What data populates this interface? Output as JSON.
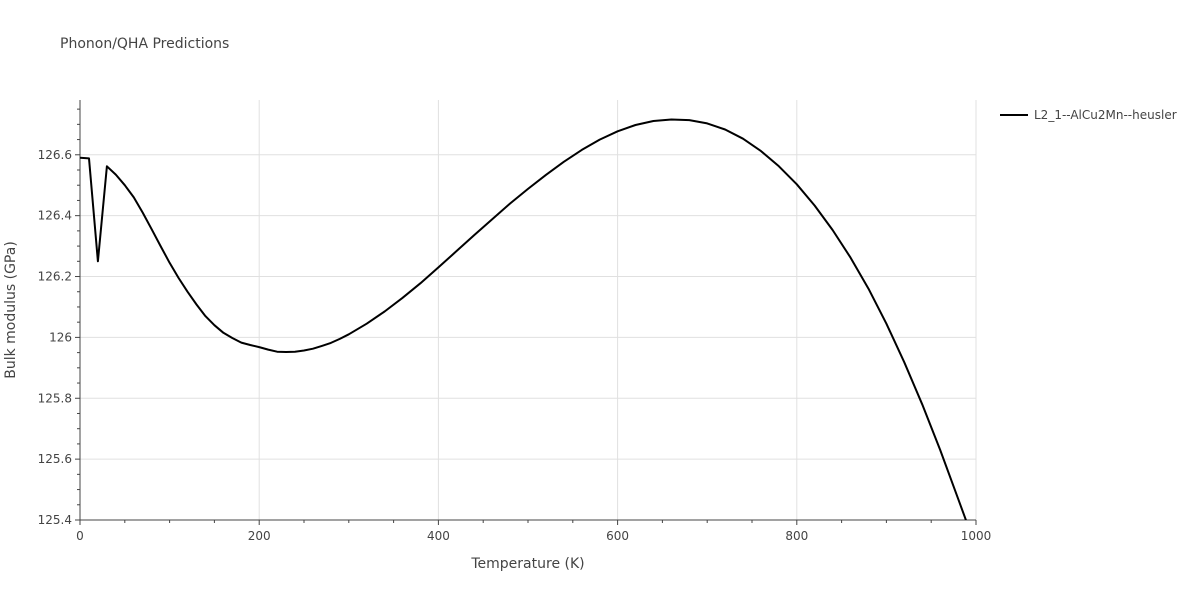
{
  "chart_data": {
    "type": "line",
    "title": "Phonon/QHA Predictions",
    "xlabel": "Temperature (K)",
    "ylabel": "Bulk modulus (GPa)",
    "xlim": [
      0,
      1000
    ],
    "ylim": [
      125.4,
      126.78
    ],
    "x_ticks": [
      0,
      200,
      400,
      600,
      800,
      1000
    ],
    "x_tick_labels": [
      "0",
      "200",
      "400",
      "600",
      "800",
      "1000"
    ],
    "y_ticks": [
      125.4,
      125.6,
      125.8,
      126.0,
      126.2,
      126.4,
      126.6
    ],
    "y_tick_labels": [
      "125.4",
      "125.6",
      "125.8",
      "126",
      "126.2",
      "126.4",
      "126.6"
    ],
    "grid": true,
    "legend_position": "top-right",
    "series": [
      {
        "name": "L2_1--AlCu2Mn--heusler",
        "color": "#000000",
        "x": [
          0,
          10,
          20,
          30,
          40,
          50,
          60,
          70,
          80,
          90,
          100,
          110,
          120,
          130,
          140,
          150,
          160,
          170,
          180,
          190,
          200,
          210,
          220,
          230,
          240,
          250,
          260,
          270,
          280,
          290,
          300,
          320,
          340,
          360,
          380,
          400,
          420,
          440,
          460,
          480,
          500,
          520,
          540,
          560,
          580,
          600,
          620,
          640,
          660,
          680,
          700,
          720,
          740,
          760,
          780,
          800,
          820,
          840,
          860,
          880,
          900,
          920,
          940,
          960,
          980,
          990
        ],
        "y": [
          126.59,
          126.588,
          126.25,
          126.562,
          126.535,
          126.5,
          126.46,
          126.41,
          126.355,
          126.3,
          126.245,
          126.195,
          126.15,
          126.108,
          126.07,
          126.04,
          126.015,
          125.998,
          125.983,
          125.975,
          125.968,
          125.96,
          125.953,
          125.952,
          125.953,
          125.957,
          125.963,
          125.972,
          125.982,
          125.995,
          126.01,
          126.045,
          126.085,
          126.13,
          126.178,
          126.23,
          126.283,
          126.336,
          126.388,
          126.44,
          126.488,
          126.534,
          126.577,
          126.616,
          126.65,
          126.677,
          126.698,
          126.711,
          126.716,
          126.714,
          126.703,
          126.683,
          126.653,
          126.612,
          126.562,
          126.503,
          126.433,
          126.353,
          126.262,
          126.16,
          126.045,
          125.918,
          125.78,
          125.63,
          125.47,
          125.39
        ]
      }
    ]
  }
}
